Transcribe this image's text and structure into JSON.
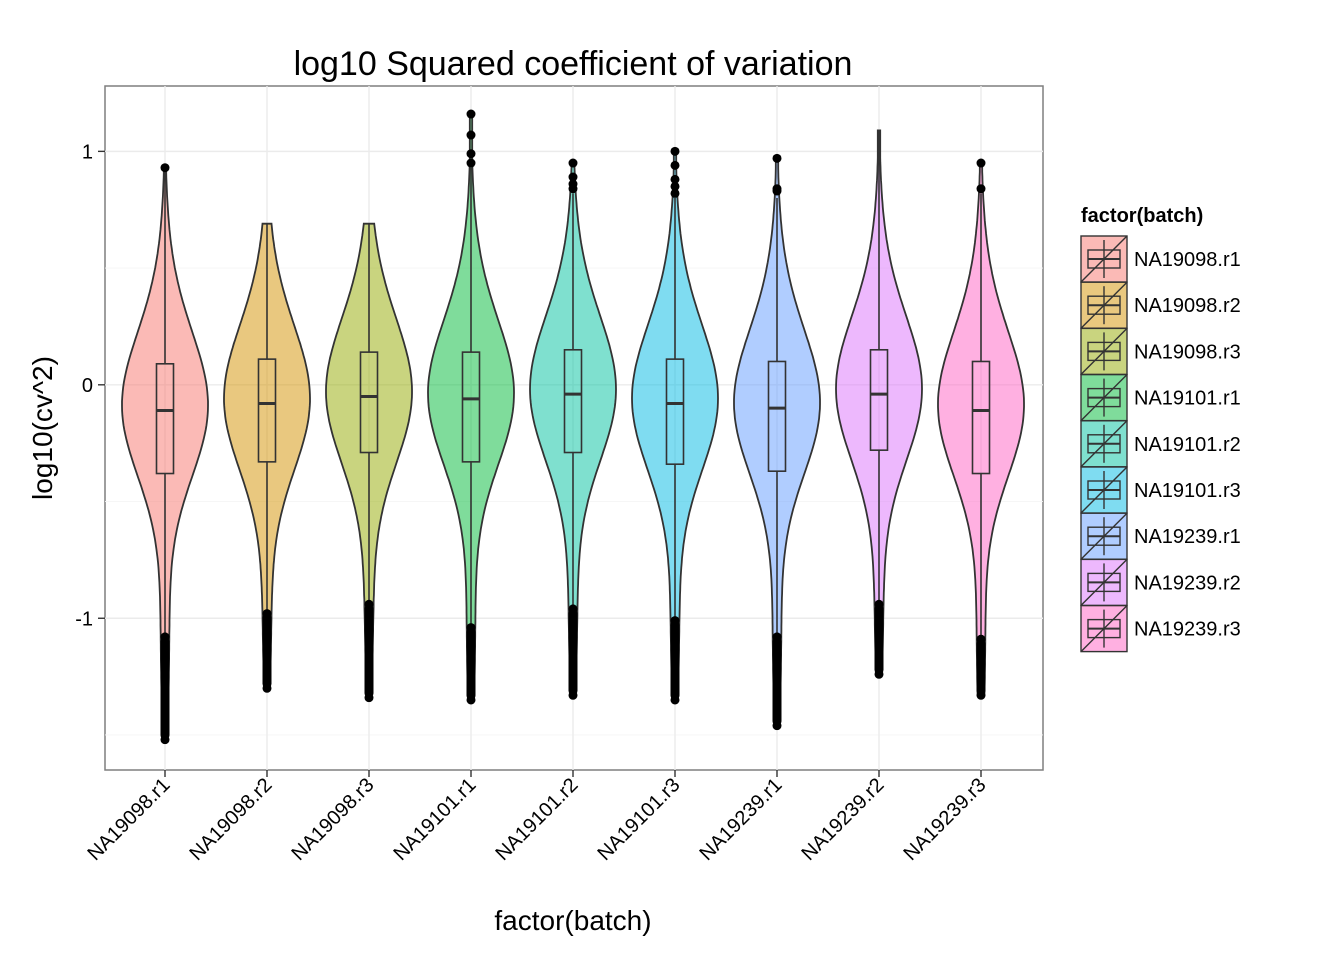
{
  "chart_data": {
    "type": "violin",
    "title": "log10 Squared coefficient of variation",
    "xlabel": "factor(batch)",
    "ylabel": "log10(cv^2)",
    "ylim": [
      -1.65,
      1.28
    ],
    "yticks": [
      -1,
      0,
      1
    ],
    "grid": true,
    "legend": {
      "title": "factor(batch)",
      "placement": "right"
    },
    "categories": [
      "NA19098.r1",
      "NA19098.r2",
      "NA19098.r3",
      "NA19101.r1",
      "NA19101.r2",
      "NA19101.r3",
      "NA19239.r1",
      "NA19239.r2",
      "NA19239.r3"
    ],
    "colors": [
      "#F8766D",
      "#D39200",
      "#93AA00",
      "#00BA38",
      "#00C19F",
      "#00B9E3",
      "#619CFF",
      "#DB72FB",
      "#FF61C3"
    ],
    "series": [
      {
        "name": "NA19098.r1",
        "min": -1.52,
        "q1": -0.38,
        "median": -0.11,
        "q3": 0.09,
        "max": 0.93,
        "upper_whisker": 0.93,
        "lower_whisker": -1.08,
        "outliers_high": [
          0.93
        ],
        "outliers_low": [
          -1.08,
          -1.12,
          -1.15,
          -1.18,
          -1.2,
          -1.23,
          -1.26,
          -1.3,
          -1.33,
          -1.38,
          -1.52
        ]
      },
      {
        "name": "NA19098.r2",
        "min": -1.3,
        "q1": -0.33,
        "median": -0.08,
        "q3": 0.11,
        "max": 0.69,
        "upper_whisker": 0.69,
        "lower_whisker": -0.97,
        "outliers_high": [],
        "outliers_low": [
          -0.98,
          -1.0,
          -1.02,
          -1.05,
          -1.08,
          -1.11,
          -1.14,
          -1.17,
          -1.2,
          -1.25,
          -1.3
        ]
      },
      {
        "name": "NA19098.r3",
        "min": -1.34,
        "q1": -0.29,
        "median": -0.05,
        "q3": 0.14,
        "max": 0.69,
        "upper_whisker": 0.69,
        "lower_whisker": -0.93,
        "outliers_high": [],
        "outliers_low": [
          -0.94,
          -0.97,
          -1.0,
          -1.04,
          -1.07,
          -1.1,
          -1.14,
          -1.18,
          -1.22,
          -1.27,
          -1.34
        ]
      },
      {
        "name": "NA19101.r1",
        "min": -1.35,
        "q1": -0.33,
        "median": -0.06,
        "q3": 0.14,
        "max": 1.16,
        "upper_whisker": 0.93,
        "lower_whisker": -1.03,
        "outliers_high": [
          0.95,
          0.99,
          1.07,
          1.16
        ],
        "outliers_low": [
          -1.04,
          -1.08,
          -1.12,
          -1.16,
          -1.2,
          -1.24,
          -1.28,
          -1.32,
          -1.35
        ]
      },
      {
        "name": "NA19101.r2",
        "min": -1.33,
        "q1": -0.29,
        "median": -0.04,
        "q3": 0.15,
        "max": 0.95,
        "upper_whisker": 0.82,
        "lower_whisker": -0.95,
        "outliers_high": [
          0.84,
          0.86,
          0.89,
          0.95
        ],
        "outliers_low": [
          -0.96,
          -0.99,
          -1.03,
          -1.07,
          -1.1,
          -1.14,
          -1.18,
          -1.22,
          -1.33
        ]
      },
      {
        "name": "NA19101.r3",
        "min": -1.35,
        "q1": -0.34,
        "median": -0.08,
        "q3": 0.11,
        "max": 1.0,
        "upper_whisker": 0.8,
        "lower_whisker": -1.0,
        "outliers_high": [
          0.82,
          0.85,
          0.88,
          0.94,
          1.0
        ],
        "outliers_low": [
          -1.01,
          -1.05,
          -1.09,
          -1.13,
          -1.17,
          -1.21,
          -1.25,
          -1.3,
          -1.35
        ]
      },
      {
        "name": "NA19239.r1",
        "min": -1.46,
        "q1": -0.37,
        "median": -0.1,
        "q3": 0.1,
        "max": 0.97,
        "upper_whisker": 0.8,
        "lower_whisker": -1.07,
        "outliers_high": [
          0.83,
          0.84,
          0.97
        ],
        "outliers_low": [
          -1.08,
          -1.12,
          -1.16,
          -1.2,
          -1.24,
          -1.28,
          -1.32,
          -1.36,
          -1.4,
          -1.46
        ]
      },
      {
        "name": "NA19239.r2",
        "min": -1.24,
        "q1": -0.28,
        "median": -0.04,
        "q3": 0.15,
        "max": 1.09,
        "upper_whisker": 1.09,
        "lower_whisker": -0.93,
        "outliers_high": [],
        "outliers_low": [
          -0.94,
          -0.97,
          -1.0,
          -1.03,
          -1.06,
          -1.09,
          -1.12,
          -1.15,
          -1.19,
          -1.24
        ]
      },
      {
        "name": "NA19239.r3",
        "min": -1.33,
        "q1": -0.38,
        "median": -0.11,
        "q3": 0.1,
        "max": 0.95,
        "upper_whisker": 0.82,
        "lower_whisker": -1.08,
        "outliers_high": [
          0.84,
          0.95
        ],
        "outliers_low": [
          -1.09,
          -1.12,
          -1.15,
          -1.18,
          -1.21,
          -1.24,
          -1.27,
          -1.3,
          -1.33
        ]
      }
    ]
  }
}
